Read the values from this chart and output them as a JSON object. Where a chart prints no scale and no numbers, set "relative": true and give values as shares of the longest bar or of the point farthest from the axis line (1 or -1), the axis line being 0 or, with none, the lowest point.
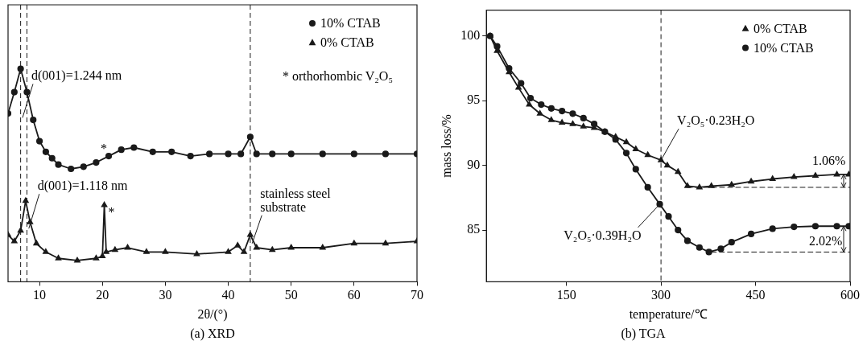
{
  "chart_data": [
    {
      "type": "line",
      "title": "(a) XRD",
      "xlabel": "2θ/(°)",
      "relative": true,
      "xlim": [
        5,
        70
      ],
      "xticks": [
        10,
        20,
        30,
        40,
        50,
        60,
        70
      ],
      "legend": "top right",
      "line_style": "solid",
      "series": [
        {
          "name": "10% CTAB",
          "color": "#1a1a1a",
          "marker": "circle",
          "x": [
            5,
            6,
            7,
            8,
            9,
            10,
            11,
            12,
            13,
            15,
            17,
            19,
            21,
            23,
            25,
            28,
            31,
            34,
            37,
            40,
            42,
            43.5,
            44.5,
            47,
            50,
            55,
            60,
            65,
            70
          ],
          "values": [
            0.79,
            0.89,
            1,
            0.89,
            0.76,
            0.66,
            0.61,
            0.58,
            0.55,
            0.53,
            0.54,
            0.56,
            0.59,
            0.62,
            0.63,
            0.61,
            0.61,
            0.59,
            0.6,
            0.6,
            0.6,
            0.68,
            0.6,
            0.6,
            0.6,
            0.6,
            0.6,
            0.6,
            0.6
          ]
        },
        {
          "name": "0% CTAB",
          "color": "#1a1a1a",
          "marker": "triangle",
          "x": [
            5,
            6,
            7,
            7.8,
            8.5,
            9.5,
            11,
            13,
            16,
            19,
            20,
            20.3,
            20.6,
            22,
            24,
            27,
            30,
            35,
            40,
            41.5,
            42.5,
            43.5,
            44.5,
            47,
            50,
            55,
            60,
            65,
            70
          ],
          "values": [
            0.22,
            0.19,
            0.24,
            0.38,
            0.28,
            0.18,
            0.14,
            0.11,
            0.1,
            0.11,
            0.12,
            0.36,
            0.14,
            0.15,
            0.16,
            0.14,
            0.14,
            0.13,
            0.14,
            0.17,
            0.14,
            0.22,
            0.16,
            0.15,
            0.16,
            0.16,
            0.18,
            0.18,
            0.19
          ]
        }
      ],
      "ref_lines": [
        {
          "axis": "x",
          "value": 7,
          "line_style": "dashed",
          "color": "#1a1a1a"
        },
        {
          "axis": "x",
          "value": 8,
          "line_style": "dashed",
          "color": "#1a1a1a"
        },
        {
          "axis": "x",
          "value": 43.5,
          "line_style": "dashed",
          "color": "#1a1a1a"
        }
      ],
      "annotations": [
        {
          "text": "d(001)=1.244 nm",
          "x": 7.3,
          "y": 0.77
        },
        {
          "text": "d(001)=1.118 nm",
          "x": 8.3,
          "y": 0.25
        },
        "* orthorhombic V₂O₅",
        {
          "text": "stainless steel substrate",
          "x": 43.8,
          "y": 0.18
        },
        {
          "text": "*",
          "x": 21,
          "y": 0.59
        },
        {
          "text": "*",
          "x": 20.3,
          "y": 0.36
        }
      ]
    },
    {
      "type": "line",
      "title": "(b) TGA",
      "xlabel": "temperature/℃",
      "ylabel": "mass loss/%",
      "xlim": [
        23,
        600
      ],
      "xticks": [
        150,
        300,
        450,
        600
      ],
      "ylim": [
        81,
        102
      ],
      "yticks": [
        85,
        90,
        95,
        100
      ],
      "legend": "top right",
      "line_style": "solid",
      "series": [
        {
          "name": "0% CTAB",
          "color": "#1a1a1a",
          "marker": "triangle",
          "x": [
            29,
            40,
            59,
            74,
            91,
            108,
            126,
            143,
            160,
            177,
            194,
            211,
            228,
            245,
            260,
            279,
            300,
            310,
            327,
            342,
            361,
            380,
            412,
            443,
            477,
            511,
            545,
            579,
            598
          ],
          "values": [
            100,
            98.85,
            97.2,
            96.0,
            94.7,
            94.0,
            93.5,
            93.3,
            93.2,
            93.0,
            92.9,
            92.6,
            92.2,
            91.8,
            91.25,
            90.8,
            90.4,
            90.0,
            89.5,
            88.4,
            88.3,
            88.4,
            88.5,
            88.75,
            88.95,
            89.1,
            89.2,
            89.3,
            89.3
          ]
        },
        {
          "color": "#1a1a1a",
          "marker": "none",
          "line_style": "dashed",
          "x": [
            342,
            600
          ],
          "values": [
            88.3,
            88.3
          ]
        },
        {
          "name": "10% CTAB",
          "color": "#1a1a1a",
          "marker": "circle",
          "x": [
            29,
            40,
            59,
            78,
            93,
            110,
            126,
            143,
            160,
            177,
            194,
            211,
            228,
            245,
            260,
            279,
            298,
            312,
            327,
            342,
            361,
            376,
            395,
            412,
            443,
            477,
            511,
            545,
            579,
            598
          ],
          "values": [
            100,
            99.2,
            97.5,
            96.35,
            95.2,
            94.7,
            94.4,
            94.2,
            94.0,
            93.65,
            93.2,
            92.6,
            92.0,
            90.95,
            89.7,
            88.3,
            87.0,
            86.05,
            85.0,
            84.17,
            83.65,
            83.3,
            83.55,
            84.06,
            84.7,
            85.1,
            85.25,
            85.3,
            85.3,
            85.3
          ]
        },
        {
          "color": "#1a1a1a",
          "marker": "none",
          "line_style": "dashed",
          "x": [
            380,
            600
          ],
          "values": [
            83.3,
            83.3
          ]
        }
      ],
      "ref_lines": [
        {
          "axis": "x",
          "value": 300,
          "line_style": "dashed",
          "color": "#1a1a1a"
        }
      ],
      "annotations": [
        {
          "text": "V₂O₅·0.23H₂O",
          "x": 300,
          "y": 90.4
        },
        {
          "text": "V₂O₅·0.39H₂O",
          "x": 298,
          "y": 87.0
        },
        {
          "text": "1.06%",
          "x": 579,
          "y": 89.3
        },
        {
          "text": "2.02%",
          "x": 579,
          "y": 85.3
        }
      ]
    }
  ]
}
